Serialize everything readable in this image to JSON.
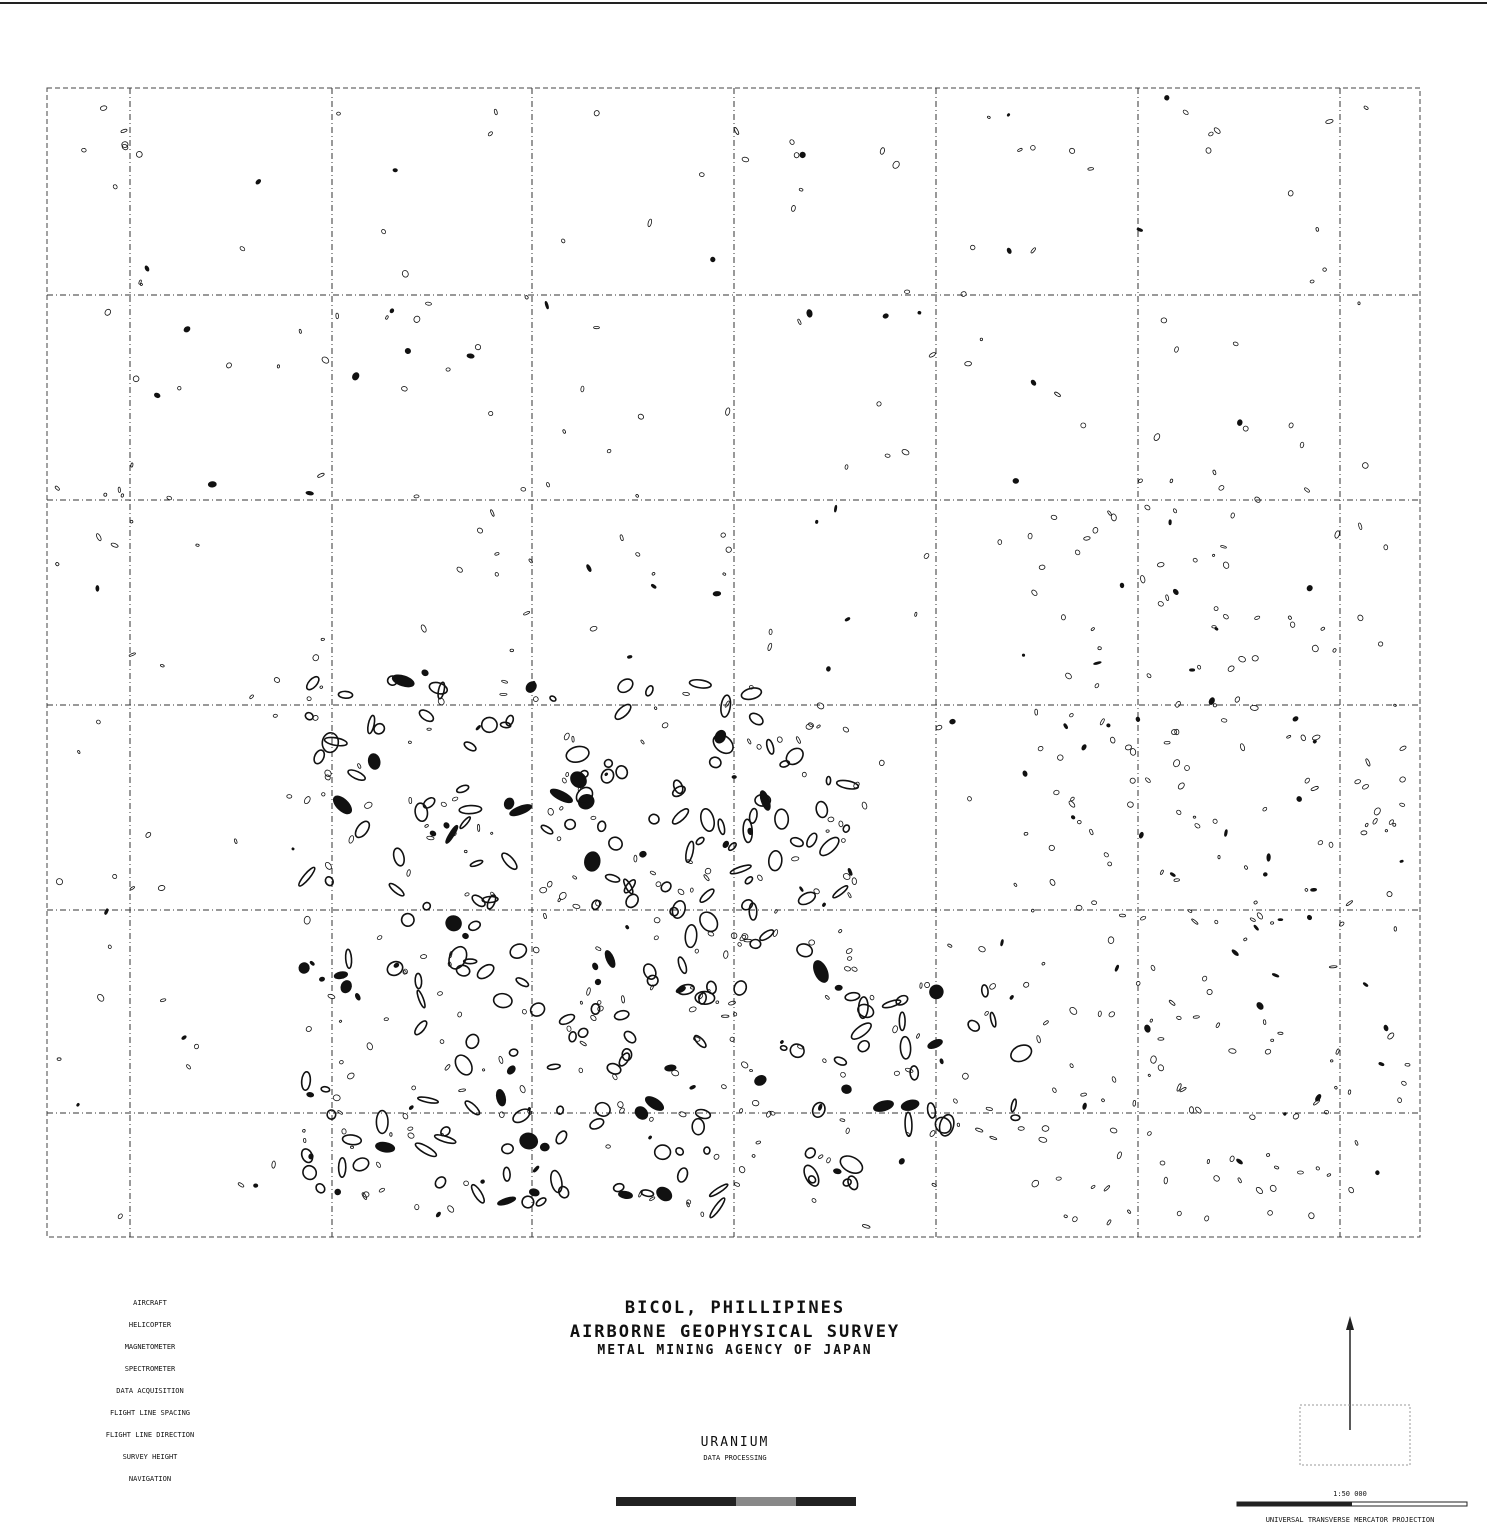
{
  "title": {
    "location": "BICOL, PHILLIPINES",
    "survey": "AIRBORNE GEOPHYSICAL SURVEY",
    "agency": "METAL MINING AGENCY OF JAPAN"
  },
  "map": {
    "subject": "URANIUM",
    "processing": "DATA PROCESSING"
  },
  "specs": [
    "AIRCRAFT",
    "HELICOPTER",
    "MAGNETOMETER",
    "SPECTROMETER",
    "DATA ACQUISITION",
    "FLIGHT LINE SPACING",
    "FLIGHT LINE DIRECTION",
    "SURVEY HEIGHT",
    "NAVIGATION"
  ],
  "scale": {
    "ratio": "1:50 000",
    "projection": "UNIVERSAL TRANSVERSE MERCATOR PROJECTION"
  }
}
